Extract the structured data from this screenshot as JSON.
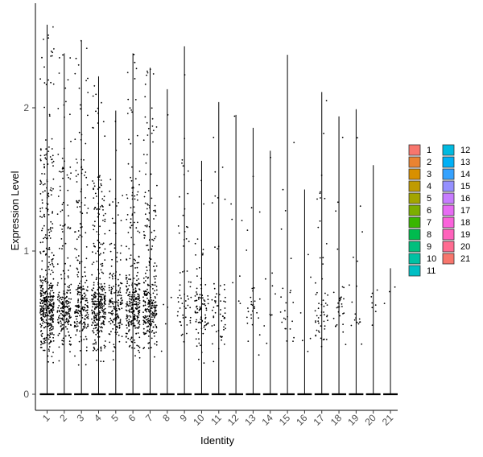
{
  "chart_data": {
    "type": "violin",
    "xlabel": "Identity",
    "ylabel": "Expression Level",
    "categories": [
      "1",
      "2",
      "3",
      "4",
      "5",
      "6",
      "7",
      "8",
      "9",
      "10",
      "11",
      "12",
      "13",
      "14",
      "15",
      "16",
      "17",
      "18",
      "19",
      "20",
      "21"
    ],
    "max_values": [
      2.58,
      2.38,
      2.47,
      2.22,
      1.98,
      2.38,
      2.28,
      2.13,
      2.43,
      1.63,
      2.04,
      1.95,
      1.86,
      1.7,
      2.37,
      1.43,
      2.11,
      1.94,
      1.99,
      1.6,
      0.88
    ],
    "nonzero_counts": [
      460,
      230,
      240,
      330,
      180,
      300,
      280,
      6,
      60,
      90,
      60,
      8,
      30,
      10,
      24,
      6,
      55,
      30,
      18,
      8,
      3
    ],
    "ylim": [
      -0.12,
      2.7
    ],
    "yticks": [
      0,
      1,
      2
    ],
    "legend": {
      "position": "right",
      "entries": [
        "1",
        "2",
        "3",
        "4",
        "5",
        "6",
        "7",
        "8",
        "9",
        "10",
        "11",
        "12",
        "13",
        "14",
        "15",
        "16",
        "17",
        "18",
        "19",
        "20",
        "21"
      ],
      "colors": [
        "#F8766D",
        "#EA8331",
        "#D89000",
        "#C09B00",
        "#A3A500",
        "#7CAE00",
        "#39B600",
        "#00BB4E",
        "#00BF7D",
        "#00C1A3",
        "#00BFC4",
        "#00BAE0",
        "#00B0F6",
        "#35A2FF",
        "#9590FF",
        "#C77CFF",
        "#E76BF3",
        "#FA62DB",
        "#FF62BC",
        "#FF6C91",
        "#F8766D"
      ]
    }
  }
}
